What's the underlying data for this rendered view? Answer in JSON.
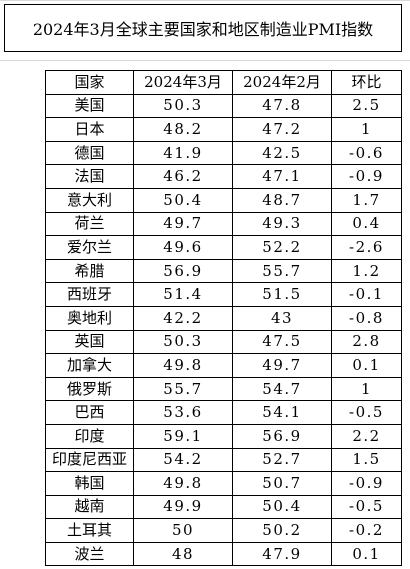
{
  "title": "2024年3月全球主要国家和地区制造业PMI指数",
  "table": {
    "headers": [
      "国家",
      "2024年3月",
      "2024年2月",
      "环比"
    ],
    "rows": [
      {
        "country": "美国",
        "mar": "50.3",
        "feb": "47.8",
        "change": "2.5"
      },
      {
        "country": "日本",
        "mar": "48.2",
        "feb": "47.2",
        "change": "1"
      },
      {
        "country": "德国",
        "mar": "41.9",
        "feb": "42.5",
        "change": "-0.6"
      },
      {
        "country": "法国",
        "mar": "46.2",
        "feb": "47.1",
        "change": "-0.9"
      },
      {
        "country": "意大利",
        "mar": "50.4",
        "feb": "48.7",
        "change": "1.7"
      },
      {
        "country": "荷兰",
        "mar": "49.7",
        "feb": "49.3",
        "change": "0.4"
      },
      {
        "country": "爱尔兰",
        "mar": "49.6",
        "feb": "52.2",
        "change": "-2.6"
      },
      {
        "country": "希腊",
        "mar": "56.9",
        "feb": "55.7",
        "change": "1.2"
      },
      {
        "country": "西班牙",
        "mar": "51.4",
        "feb": "51.5",
        "change": "-0.1"
      },
      {
        "country": "奥地利",
        "mar": "42.2",
        "feb": "43",
        "change": "-0.8"
      },
      {
        "country": "英国",
        "mar": "50.3",
        "feb": "47.5",
        "change": "2.8"
      },
      {
        "country": "加拿大",
        "mar": "49.8",
        "feb": "49.7",
        "change": "0.1"
      },
      {
        "country": "俄罗斯",
        "mar": "55.7",
        "feb": "54.7",
        "change": "1"
      },
      {
        "country": "巴西",
        "mar": "53.6",
        "feb": "54.1",
        "change": "-0.5"
      },
      {
        "country": "印度",
        "mar": "59.1",
        "feb": "56.9",
        "change": "2.2"
      },
      {
        "country": "印度尼西亚",
        "mar": "54.2",
        "feb": "52.7",
        "change": "1.5"
      },
      {
        "country": "韩国",
        "mar": "49.8",
        "feb": "50.7",
        "change": "-0.9"
      },
      {
        "country": "越南",
        "mar": "49.9",
        "feb": "50.4",
        "change": "-0.5"
      },
      {
        "country": "土耳其",
        "mar": "50",
        "feb": "50.2",
        "change": "-0.2"
      },
      {
        "country": "波兰",
        "mar": "48",
        "feb": "47.9",
        "change": "0.1"
      }
    ]
  }
}
